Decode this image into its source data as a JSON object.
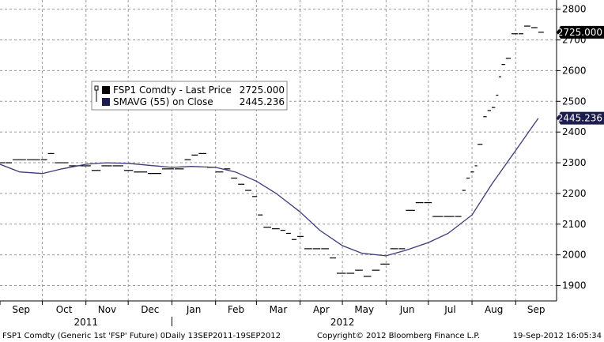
{
  "chart_data": {
    "type": "line",
    "ylim": [
      1850,
      2830
    ],
    "y_ticks": [
      1900,
      2000,
      2100,
      2200,
      2300,
      2400,
      2500,
      2600,
      2700,
      2800
    ],
    "y_tick_labels": [
      "1900",
      "2000",
      "2100",
      "2200",
      "2300",
      "2400",
      "2500",
      "2600",
      "2700",
      "2800"
    ],
    "x_range": [
      "2011-09-01",
      "2012-09-30"
    ],
    "months": [
      {
        "label": "Sep",
        "date": "2011-09-01"
      },
      {
        "label": "Oct",
        "date": "2011-10-01"
      },
      {
        "label": "Nov",
        "date": "2011-11-01"
      },
      {
        "label": "Dec",
        "date": "2011-12-01"
      },
      {
        "label": "Jan",
        "date": "2012-01-01"
      },
      {
        "label": "Feb",
        "date": "2012-02-01"
      },
      {
        "label": "Mar",
        "date": "2012-03-01"
      },
      {
        "label": "Apr",
        "date": "2012-04-01"
      },
      {
        "label": "May",
        "date": "2012-05-01"
      },
      {
        "label": "Jun",
        "date": "2012-06-01"
      },
      {
        "label": "Jul",
        "date": "2012-07-01"
      },
      {
        "label": "Aug",
        "date": "2012-08-01"
      },
      {
        "label": "Sep",
        "date": "2012-09-01"
      }
    ],
    "years": [
      {
        "label": "2011",
        "date": "2011-11-01"
      },
      {
        "label": "2012",
        "date": "2012-05-01"
      }
    ],
    "year_divider_date": "2012-01-01",
    "grid": true,
    "legend_position": "upper-left",
    "series": [
      {
        "name": "FSP1 Comdty - Last Price",
        "legend_value": "2725.000",
        "color": "#000000",
        "last_value_tag": "2725.000",
        "tag_color": "#000000",
        "points": [
          [
            "2011-09-01",
            2300
          ],
          [
            "2011-09-05",
            2300
          ],
          [
            "2011-09-10",
            2310
          ],
          [
            "2011-09-20",
            2310
          ],
          [
            "2011-09-30",
            2310
          ],
          [
            "2011-10-05",
            2330
          ],
          [
            "2011-10-10",
            2300
          ],
          [
            "2011-10-20",
            2290
          ],
          [
            "2011-10-28",
            2290
          ],
          [
            "2011-11-05",
            2275
          ],
          [
            "2011-11-12",
            2290
          ],
          [
            "2011-11-20",
            2290
          ],
          [
            "2011-11-28",
            2275
          ],
          [
            "2011-12-05",
            2270
          ],
          [
            "2011-12-15",
            2265
          ],
          [
            "2011-12-25",
            2280
          ],
          [
            "2012-01-03",
            2280
          ],
          [
            "2012-01-10",
            2310
          ],
          [
            "2012-01-15",
            2325
          ],
          [
            "2012-01-20",
            2330
          ],
          [
            "2012-01-26",
            2285
          ],
          [
            "2012-02-01",
            2270
          ],
          [
            "2012-02-07",
            2280
          ],
          [
            "2012-02-12",
            2250
          ],
          [
            "2012-02-17",
            2230
          ],
          [
            "2012-02-22",
            2210
          ],
          [
            "2012-02-27",
            2190
          ],
          [
            "2012-03-02",
            2130
          ],
          [
            "2012-03-06",
            2090
          ],
          [
            "2012-03-12",
            2085
          ],
          [
            "2012-03-18",
            2080
          ],
          [
            "2012-03-22",
            2070
          ],
          [
            "2012-03-26",
            2050
          ],
          [
            "2012-03-30",
            2060
          ],
          [
            "2012-04-04",
            2020
          ],
          [
            "2012-04-10",
            2020
          ],
          [
            "2012-04-16",
            2020
          ],
          [
            "2012-04-22",
            1990
          ],
          [
            "2012-04-27",
            1940
          ],
          [
            "2012-05-04",
            1940
          ],
          [
            "2012-05-10",
            1950
          ],
          [
            "2012-05-16",
            1930
          ],
          [
            "2012-05-22",
            1950
          ],
          [
            "2012-05-28",
            1970
          ],
          [
            "2012-06-04",
            2020
          ],
          [
            "2012-06-10",
            2020
          ],
          [
            "2012-06-15",
            2145
          ],
          [
            "2012-06-22",
            2170
          ],
          [
            "2012-06-28",
            2170
          ],
          [
            "2012-07-04",
            2125
          ],
          [
            "2012-07-12",
            2125
          ],
          [
            "2012-07-20",
            2125
          ],
          [
            "2012-07-25",
            2210
          ],
          [
            "2012-07-28",
            2250
          ],
          [
            "2012-07-31",
            2270
          ],
          [
            "2012-08-03",
            2290
          ],
          [
            "2012-08-05",
            2360
          ],
          [
            "2012-08-09",
            2450
          ],
          [
            "2012-08-12",
            2470
          ],
          [
            "2012-08-15",
            2480
          ],
          [
            "2012-08-18",
            2520
          ],
          [
            "2012-08-20",
            2580
          ],
          [
            "2012-08-22",
            2620
          ],
          [
            "2012-08-25",
            2640
          ],
          [
            "2012-08-29",
            2720
          ],
          [
            "2012-09-03",
            2720
          ],
          [
            "2012-09-07",
            2745
          ],
          [
            "2012-09-12",
            2740
          ],
          [
            "2012-09-17",
            2725
          ]
        ]
      },
      {
        "name": "SMAVG (55) on Close",
        "legend_value": "2445.236",
        "color": "#3b3b78",
        "last_value_tag": "2445.236",
        "tag_color": "#1c1c4e",
        "points": [
          [
            "2011-09-01",
            2295
          ],
          [
            "2011-09-15",
            2270
          ],
          [
            "2011-10-01",
            2265
          ],
          [
            "2011-10-15",
            2280
          ],
          [
            "2011-11-01",
            2295
          ],
          [
            "2011-11-15",
            2300
          ],
          [
            "2011-12-01",
            2298
          ],
          [
            "2011-12-15",
            2292
          ],
          [
            "2012-01-01",
            2285
          ],
          [
            "2012-01-15",
            2288
          ],
          [
            "2012-02-01",
            2285
          ],
          [
            "2012-02-15",
            2270
          ],
          [
            "2012-03-01",
            2240
          ],
          [
            "2012-03-15",
            2200
          ],
          [
            "2012-04-01",
            2140
          ],
          [
            "2012-04-15",
            2080
          ],
          [
            "2012-05-01",
            2030
          ],
          [
            "2012-05-15",
            2005
          ],
          [
            "2012-06-01",
            1997
          ],
          [
            "2012-06-15",
            2015
          ],
          [
            "2012-07-01",
            2040
          ],
          [
            "2012-07-15",
            2070
          ],
          [
            "2012-08-01",
            2130
          ],
          [
            "2012-08-15",
            2230
          ],
          [
            "2012-09-01",
            2340
          ],
          [
            "2012-09-17",
            2445
          ]
        ]
      }
    ]
  },
  "footer": {
    "left": "FSP1 Comdty (Generic 1st 'FSP' Future) 0Daily 13SEP2011-19SEP2012",
    "middle": "Copyright© 2012 Bloomberg Finance L.P.",
    "right": "19-Sep-2012 16:05:34"
  }
}
